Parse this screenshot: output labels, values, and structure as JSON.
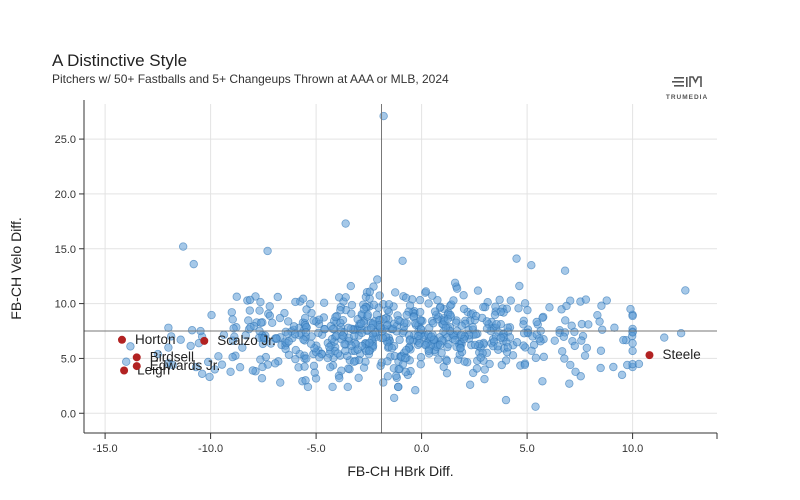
{
  "chart_data": {
    "type": "scatter",
    "title": "A Distinctive Style",
    "subtitle": "Pitchers w/ 50+ Fastballs and 5+ Changeups Thrown at AAA or MLB, 2024",
    "xlabel": "FB-CH HBrk Diff.",
    "ylabel": "FB-CH Velo Diff.",
    "xlim": [
      -16,
      14
    ],
    "ylim": [
      -1.8,
      28.2
    ],
    "x_ticks": [
      "-15.0",
      "-10.0",
      "-5.0",
      "0.0",
      "5.0",
      "10.0"
    ],
    "y_ticks": [
      "0.0",
      "5.0",
      "10.0",
      "15.0",
      "20.0",
      "25.0"
    ],
    "reference_lines": {
      "x": -1.9,
      "y": 7.5
    },
    "grid": true,
    "highlighted": [
      {
        "name": "Horton",
        "x": -14.2,
        "y": 6.7
      },
      {
        "name": "Birdsell",
        "x": -13.5,
        "y": 5.1
      },
      {
        "name": "Leigh",
        "x": -14.1,
        "y": 3.9
      },
      {
        "name": "Edwards Jr.",
        "x": -13.5,
        "y": 4.3
      },
      {
        "name": "Scalzo Jr.",
        "x": -10.3,
        "y": 6.6
      },
      {
        "name": "Steele",
        "x": 10.8,
        "y": 5.3
      }
    ],
    "outliers": [
      [
        -1.8,
        27.1
      ],
      [
        -3.6,
        17.3
      ],
      [
        -11.3,
        15.2
      ],
      [
        -10.8,
        13.6
      ],
      [
        -7.3,
        14.8
      ],
      [
        -13.8,
        6.1
      ],
      [
        -14.0,
        4.7
      ],
      [
        -12.5,
        5.4
      ],
      [
        -11.8,
        4.4
      ],
      [
        -10.4,
        3.6
      ],
      [
        -9.8,
        4.0
      ],
      [
        4.5,
        14.1
      ],
      [
        5.2,
        13.5
      ],
      [
        6.8,
        13.0
      ],
      [
        -0.9,
        13.9
      ],
      [
        -1.3,
        1.4
      ],
      [
        5.4,
        0.6
      ],
      [
        4.0,
        1.2
      ],
      [
        2.3,
        2.6
      ],
      [
        7.0,
        2.7
      ],
      [
        12.5,
        11.2
      ],
      [
        12.3,
        7.3
      ],
      [
        11.5,
        6.9
      ],
      [
        10.3,
        4.5
      ],
      [
        9.5,
        3.5
      ],
      [
        9.9,
        9.5
      ],
      [
        -6.7,
        2.8
      ],
      [
        -0.3,
        2.1
      ],
      [
        -5.5,
        3.0
      ],
      [
        -3.9,
        3.2
      ],
      [
        7.9,
        8.1
      ],
      [
        8.5,
        5.7
      ],
      [
        -2.1,
        12.2
      ],
      [
        3.8,
        4.4
      ],
      [
        -8.0,
        3.9
      ]
    ],
    "bulk": {
      "count": 640,
      "x_mean": -0.9,
      "x_sd": 4.6,
      "x_range": [
        -12,
        10
      ],
      "y_mean": 7.1,
      "y_sd": 1.9,
      "y_range": [
        2.4,
        13.2
      ],
      "seed": 7
    },
    "colors": {
      "point_fill": "#5b9bd5",
      "point_stroke": "#2e75b6",
      "highlight": "#b22222",
      "grid": "#e3e3e3",
      "refline": "#777777"
    }
  },
  "logo": {
    "text": "TRUMEDIA"
  }
}
